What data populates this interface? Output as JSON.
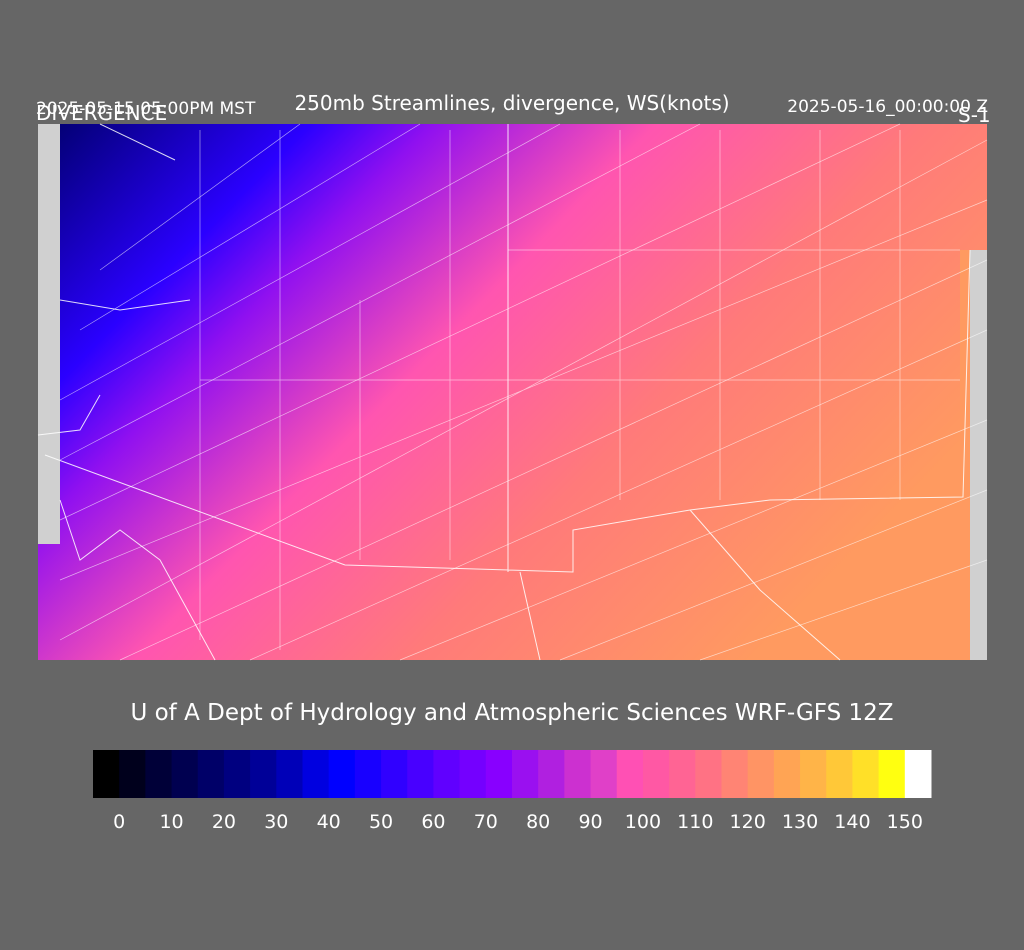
{
  "header": {
    "label": "DIVERGENCE",
    "local_time": "2025-05-15 05:00PM MST",
    "title": "250mb Streamlines, divergence, WS(knots)",
    "valid_time": "2025-05-16_00:00:00 Z",
    "run": "S-1"
  },
  "footer": "U of A Dept of Hydrology and Atmospheric Sciences WRF-GFS 12Z",
  "colorbar": {
    "colors": [
      "#000000",
      "#00001c",
      "#000038",
      "#000050",
      "#000068",
      "#000080",
      "#000098",
      "#0000b8",
      "#0000e0",
      "#0000ff",
      "#1800ff",
      "#3000ff",
      "#4800ff",
      "#6000ff",
      "#7400ff",
      "#8800ff",
      "#9a10f0",
      "#b020e0",
      "#cc30d0",
      "#e040c8",
      "#ff50b4",
      "#ff58a4",
      "#ff6494",
      "#ff7284",
      "#ff8474",
      "#ff9464",
      "#ffa454",
      "#ffb448",
      "#ffc838",
      "#ffe028",
      "#ffff10",
      "#ffffff"
    ],
    "ticks": [
      0,
      10,
      20,
      30,
      40,
      50,
      60,
      70,
      80,
      90,
      100,
      110,
      120,
      130,
      140,
      150
    ]
  }
}
